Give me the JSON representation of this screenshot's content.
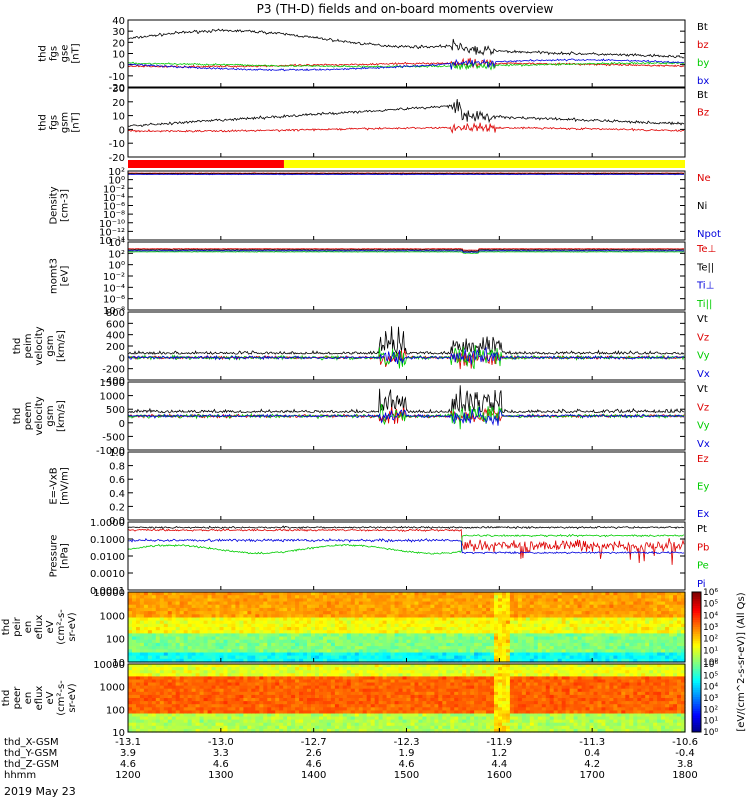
{
  "title": "P3 (TH-D) fields and on-board moments overview",
  "date_label": "2019 May 23",
  "colorbar": {
    "label": "[eV/(cm^2-s-sr-eV)] (All Qs)",
    "ticks": [
      "10⁰",
      "10¹",
      "10²",
      "10³",
      "10⁴",
      "10⁵",
      "10⁶"
    ]
  },
  "mode_bar": {
    "red_fraction": 0.28,
    "colors": [
      "#ff0000",
      "#ffff00"
    ]
  },
  "ephemeris": {
    "rows": [
      {
        "label": "thd_X-GSM",
        "values": [
          "-13.1",
          "-13.0",
          "-12.7",
          "-12.3",
          "-11.9",
          "-11.3",
          "-10.6"
        ]
      },
      {
        "label": "thd_Y-GSM",
        "values": [
          "3.9",
          "3.3",
          "2.6",
          "1.9",
          "1.2",
          "0.4",
          "-0.4"
        ]
      },
      {
        "label": "thd_Z-GSM",
        "values": [
          "4.6",
          "4.6",
          "4.6",
          "4.6",
          "4.4",
          "4.2",
          "3.8"
        ]
      },
      {
        "label": "hhmm",
        "values": [
          "1200",
          "1300",
          "1400",
          "1500",
          "1600",
          "1700",
          "1800"
        ]
      }
    ]
  },
  "chart_data": [
    {
      "type": "line",
      "panel": "fgs_gse",
      "ylabel": [
        "thd",
        "fgs",
        "gse",
        "[nT]"
      ],
      "ylim": [
        -20,
        40
      ],
      "ticks": [
        "40",
        "30",
        "20",
        "10",
        "0",
        "-10",
        "-20"
      ],
      "series": [
        {
          "name": "Bt",
          "color": "#000000"
        },
        {
          "name": "bz",
          "color": "#dd0000"
        },
        {
          "name": "by",
          "color": "#00cc00"
        },
        {
          "name": "bx",
          "color": "#0000dd"
        }
      ]
    },
    {
      "type": "line",
      "panel": "fgs_gsm",
      "ylabel": [
        "thd",
        "fgs",
        "gsm",
        "[nT]"
      ],
      "ylim": [
        -20,
        30
      ],
      "ticks": [
        "30",
        "20",
        "10",
        "0",
        "-10",
        "-20"
      ],
      "series": [
        {
          "name": "Bt",
          "color": "#000000"
        },
        {
          "name": "Bz",
          "color": "#dd0000"
        }
      ]
    },
    {
      "type": "line",
      "panel": "density",
      "ylabel": [
        "Density",
        "[cm-3]"
      ],
      "ylim": [
        "10^-14",
        "10^2"
      ],
      "ticks": [
        "10²",
        "10⁰",
        "10⁻²",
        "10⁻⁴",
        "10⁻⁶",
        "10⁻⁸",
        "10⁻¹⁰",
        "10⁻¹²",
        "10⁻¹⁴"
      ],
      "series": [
        {
          "name": "Ne",
          "color": "#dd0000"
        },
        {
          "name": "Ni",
          "color": "#000000"
        },
        {
          "name": "Npot",
          "color": "#0000dd"
        }
      ]
    },
    {
      "type": "line",
      "panel": "temperature",
      "ylabel": [
        "momt3",
        "[eV]"
      ],
      "ylim": [
        "10^-8",
        "10^4"
      ],
      "ticks": [
        "10⁴",
        "10²",
        "10⁰",
        "10⁻²",
        "10⁻⁴",
        "10⁻⁶",
        "10⁻⁸"
      ],
      "series": [
        {
          "name": "Te⊥",
          "color": "#dd0000"
        },
        {
          "name": "Te||",
          "color": "#000000"
        },
        {
          "name": "Ti⊥",
          "color": "#0000dd"
        },
        {
          "name": "Ti||",
          "color": "#00cc00"
        }
      ]
    },
    {
      "type": "line",
      "panel": "peim_velocity",
      "ylabel": [
        "thd",
        "peim",
        "velocity",
        "gsm",
        "[km/s]"
      ],
      "ylim": [
        -400,
        800
      ],
      "ticks": [
        "800",
        "600",
        "400",
        "200",
        "0",
        "-200",
        "-400"
      ],
      "series": [
        {
          "name": "Vt",
          "color": "#000000"
        },
        {
          "name": "Vz",
          "color": "#dd0000"
        },
        {
          "name": "Vy",
          "color": "#00cc00"
        },
        {
          "name": "Vx",
          "color": "#0000dd"
        }
      ]
    },
    {
      "type": "line",
      "panel": "peem_velocity",
      "ylabel": [
        "thd",
        "peem",
        "velocity",
        "gsm",
        "[km/s]"
      ],
      "ylim": [
        -1500,
        1500
      ],
      "ticks": [
        "1500",
        "1000",
        "500",
        "0",
        "-500",
        "-1000"
      ],
      "series": [
        {
          "name": "Vt",
          "color": "#000000"
        },
        {
          "name": "Vz",
          "color": "#dd0000"
        },
        {
          "name": "Vy",
          "color": "#00cc00"
        },
        {
          "name": "Vx",
          "color": "#0000dd"
        }
      ]
    },
    {
      "type": "line",
      "panel": "efield",
      "ylabel": [
        "E=-VxB",
        "[mV/m]"
      ],
      "ylim": [
        0,
        1
      ],
      "ticks": [
        "1.0",
        "0.8",
        "0.6",
        "0.4",
        "0.2",
        "0.0"
      ],
      "series": [
        {
          "name": "Ez",
          "color": "#dd0000"
        },
        {
          "name": "Ey",
          "color": "#00cc00"
        },
        {
          "name": "Ex",
          "color": "#0000dd"
        }
      ]
    },
    {
      "type": "line",
      "panel": "pressure",
      "ylabel": [
        "Pressure",
        "[nPa]"
      ],
      "ylim": [
        0.0001,
        1
      ],
      "ticks": [
        "1.0000",
        "0.1000",
        "0.0100",
        "0.0010",
        "0.0001"
      ],
      "series": [
        {
          "name": "Pt",
          "color": "#000000"
        },
        {
          "name": "Pb",
          "color": "#dd0000"
        },
        {
          "name": "Pe",
          "color": "#00cc00"
        },
        {
          "name": "Pi",
          "color": "#0000dd"
        }
      ]
    },
    {
      "type": "heatmap",
      "panel": "peir_spectrogram",
      "ylabel": [
        "thd",
        "peir",
        "en",
        "eflux",
        "eV",
        "(cm²-s-",
        "sr-eV)"
      ],
      "ylim": [
        5,
        30000
      ],
      "ticks": [
        "10000",
        "1000",
        "100",
        "10"
      ]
    },
    {
      "type": "heatmap",
      "panel": "peer_spectrogram",
      "ylabel": [
        "thd",
        "peer",
        "en",
        "eflux",
        "eV",
        "(cm²-s-",
        "sr-eV)"
      ],
      "ylim": [
        5,
        30000
      ],
      "ticks": [
        "10000",
        "1000",
        "100",
        "10"
      ]
    }
  ]
}
